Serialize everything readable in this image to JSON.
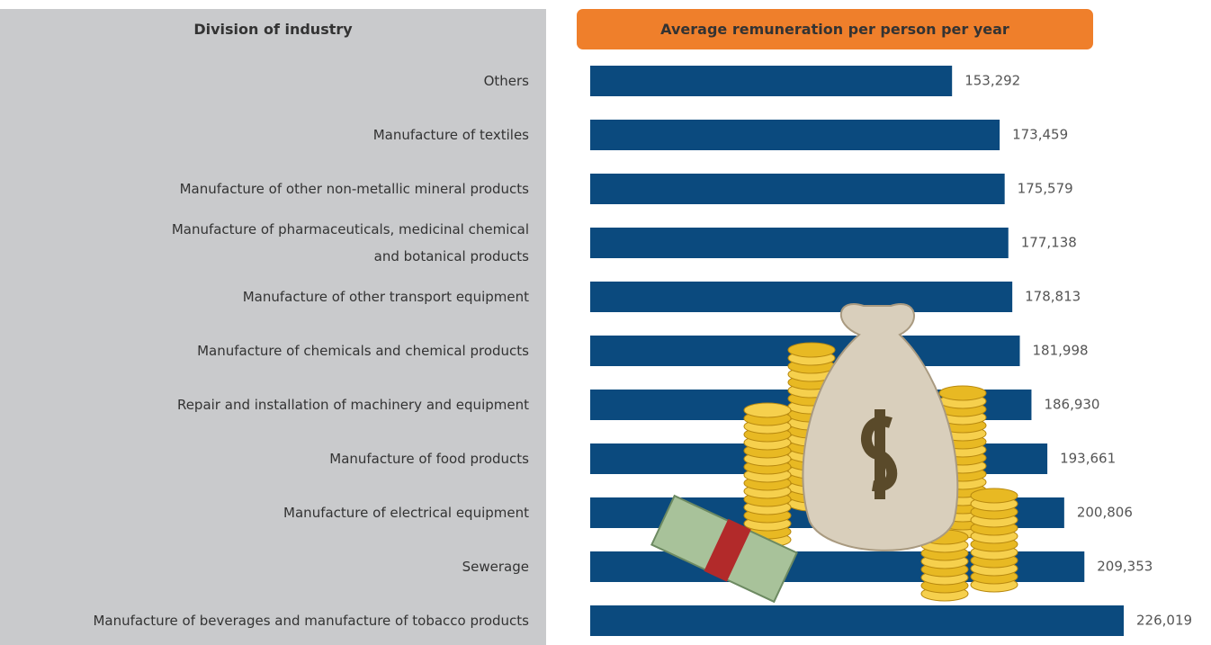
{
  "chart_data": {
    "type": "bar",
    "category_header": "Division of industry",
    "title": "Average remuneration per person per year",
    "categories": [
      "Others",
      "Manufacture of textiles",
      "Manufacture of other non-metallic mineral products",
      "Manufacture of pharmaceuticals, medicinal chemical\nand botanical products",
      "Manufacture of other transport equipment",
      "Manufacture of chemicals and chemical products",
      "Repair and installation of machinery and equipment",
      "Manufacture of food products",
      "Manufacture of electrical equipment",
      "Sewerage",
      "Manufacture of beverages and manufacture of tobacco products"
    ],
    "values": [
      153292,
      173459,
      175579,
      177138,
      178813,
      181998,
      186930,
      193661,
      200806,
      209353,
      226019
    ],
    "value_labels": [
      "153,292",
      "173,459",
      "175,579",
      "177,138",
      "178,813",
      "181,998",
      "186,930",
      "193,661",
      "200,806",
      "209,353",
      "226,019"
    ],
    "color": "#0b4a7e"
  }
}
